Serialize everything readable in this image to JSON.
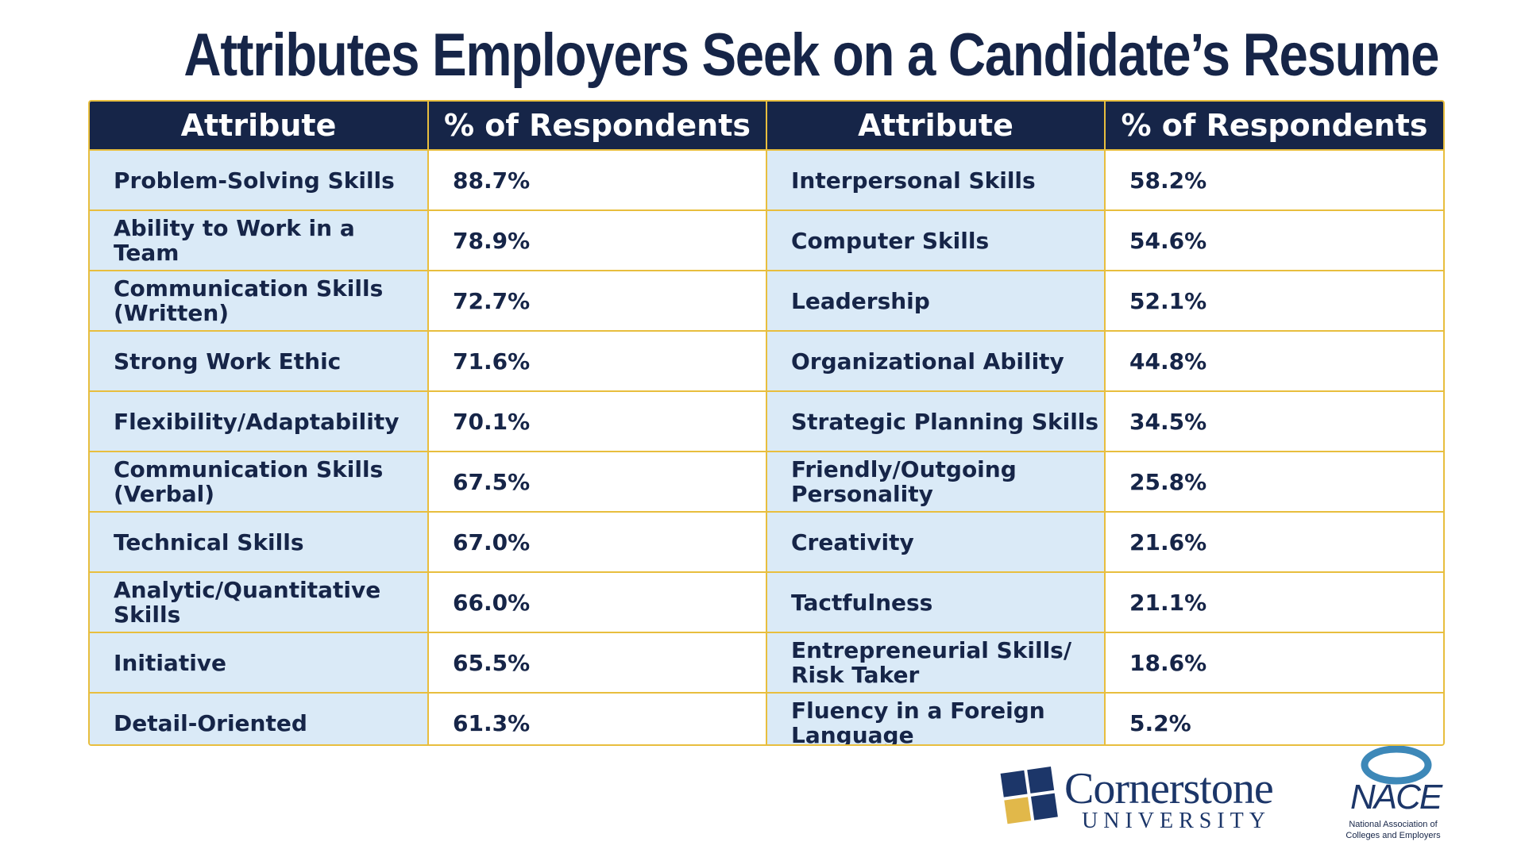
{
  "title": "Attributes Employers Seek on a Candidate’s Resume",
  "table": {
    "headers": [
      "Attribute",
      "% of Respondents",
      "Attribute",
      "% of Respondents"
    ],
    "rows": [
      {
        "attr1": "Problem-Solving Skills",
        "pct1": "88.7%",
        "attr2": "Interpersonal Skills",
        "pct2": "58.2%"
      },
      {
        "attr1": "Ability to Work in a Team",
        "pct1": "78.9%",
        "attr2": "Computer Skills",
        "pct2": "54.6%"
      },
      {
        "attr1": "Communication Skills (Written)",
        "pct1": "72.7%",
        "attr2": "Leadership",
        "pct2": "52.1%"
      },
      {
        "attr1": "Strong Work Ethic",
        "pct1": "71.6%",
        "attr2": "Organizational Ability",
        "pct2": "44.8%"
      },
      {
        "attr1": "Flexibility/Adaptability",
        "pct1": "70.1%",
        "attr2": "Strategic Planning Skills",
        "pct2": "34.5%"
      },
      {
        "attr1": "Communication Skills (Verbal)",
        "pct1": "67.5%",
        "attr2": "Friendly/Outgoing Personality",
        "pct2": "25.8%"
      },
      {
        "attr1": "Technical Skills",
        "pct1": "67.0%",
        "attr2": "Creativity",
        "pct2": "21.6%"
      },
      {
        "attr1": "Analytic/Quantitative Skills",
        "pct1": "66.0%",
        "attr2": "Tactfulness",
        "pct2": "21.1%"
      },
      {
        "attr1": "Initiative",
        "pct1": "65.5%",
        "attr2": "Entrepreneurial Skills/ Risk Taker",
        "pct2": "18.6%"
      },
      {
        "attr1": "Detail-Oriented",
        "pct1": "61.3%",
        "attr2": "Fluency in a Foreign Language",
        "pct2": "5.2%"
      }
    ]
  },
  "logos": {
    "cornerstone_name": "Cornerstone",
    "cornerstone_sub": "UNIVERSITY",
    "cornerstone_icon": "four-square-window-logo-icon",
    "nace_name": "NACE",
    "nace_sub": "National Association of Colleges and Employers",
    "nace_icon": "swirl-logo-icon"
  },
  "colors": {
    "navy": "#162548",
    "gold_border": "#e8be3e",
    "light_blue_cell": "#daeaf7",
    "white_cell": "#ffffff",
    "logo_blue": "#1c3669",
    "logo_gold": "#e1b84a",
    "nace_swirl": "#3d88b8"
  }
}
